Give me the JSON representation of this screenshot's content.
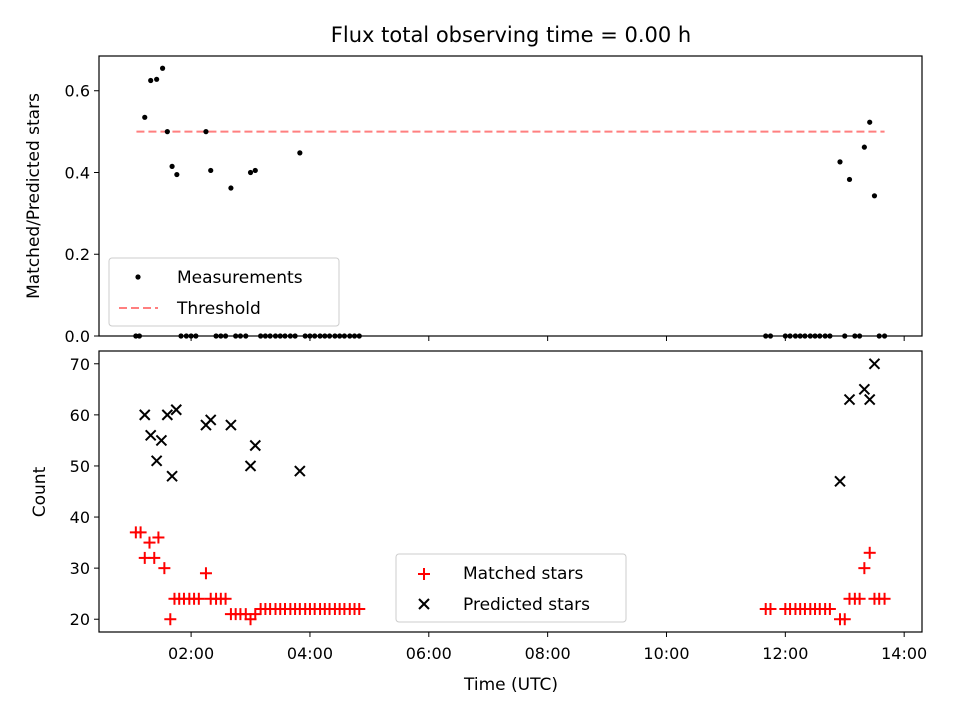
{
  "chart_data": [
    {
      "type": "scatter",
      "title": "Flux total observing time = 0.00 h",
      "xlabel": "",
      "ylabel": "Matched/Predicted stars",
      "x_unit": "hours UTC",
      "xlim": [
        0.45,
        14.3
      ],
      "ylim": [
        0.0,
        0.685
      ],
      "yticks": [
        "0.0",
        "0.2",
        "0.4",
        "0.6"
      ],
      "legend": "lower-left",
      "series": [
        {
          "name": "Measurements",
          "marker": "dot",
          "color": "#000000",
          "points": [
            [
              1.07,
              0.0
            ],
            [
              1.13,
              0.0
            ],
            [
              1.22,
              0.535
            ],
            [
              1.32,
              0.625
            ],
            [
              1.42,
              0.628
            ],
            [
              1.52,
              0.655
            ],
            [
              1.6,
              0.5
            ],
            [
              1.68,
              0.415
            ],
            [
              1.76,
              0.395
            ],
            [
              1.83,
              0.0
            ],
            [
              1.92,
              0.0
            ],
            [
              2.0,
              0.0
            ],
            [
              2.08,
              0.0
            ],
            [
              2.25,
              0.5
            ],
            [
              2.33,
              0.405
            ],
            [
              2.42,
              0.0
            ],
            [
              2.5,
              0.0
            ],
            [
              2.58,
              0.0
            ],
            [
              2.67,
              0.362
            ],
            [
              2.75,
              0.0
            ],
            [
              2.83,
              0.0
            ],
            [
              2.92,
              0.0
            ],
            [
              3.0,
              0.4
            ],
            [
              3.08,
              0.405
            ],
            [
              3.17,
              0.0
            ],
            [
              3.25,
              0.0
            ],
            [
              3.33,
              0.0
            ],
            [
              3.42,
              0.0
            ],
            [
              3.5,
              0.0
            ],
            [
              3.58,
              0.0
            ],
            [
              3.67,
              0.0
            ],
            [
              3.75,
              0.0
            ],
            [
              3.83,
              0.448
            ],
            [
              3.92,
              0.0
            ],
            [
              4.0,
              0.0
            ],
            [
              4.08,
              0.0
            ],
            [
              4.17,
              0.0
            ],
            [
              4.25,
              0.0
            ],
            [
              4.33,
              0.0
            ],
            [
              4.42,
              0.0
            ],
            [
              4.5,
              0.0
            ],
            [
              4.58,
              0.0
            ],
            [
              4.67,
              0.0
            ],
            [
              4.75,
              0.0
            ],
            [
              4.83,
              0.0
            ],
            [
              11.67,
              0.0
            ],
            [
              11.75,
              0.0
            ],
            [
              12.0,
              0.0
            ],
            [
              12.08,
              0.0
            ],
            [
              12.17,
              0.0
            ],
            [
              12.25,
              0.0
            ],
            [
              12.33,
              0.0
            ],
            [
              12.42,
              0.0
            ],
            [
              12.5,
              0.0
            ],
            [
              12.58,
              0.0
            ],
            [
              12.67,
              0.0
            ],
            [
              12.75,
              0.0
            ],
            [
              12.92,
              0.426
            ],
            [
              13.0,
              0.0
            ],
            [
              13.08,
              0.383
            ],
            [
              13.17,
              0.0
            ],
            [
              13.25,
              0.0
            ],
            [
              13.33,
              0.462
            ],
            [
              13.42,
              0.523
            ],
            [
              13.5,
              0.343
            ],
            [
              13.58,
              0.0
            ],
            [
              13.67,
              0.0
            ]
          ]
        },
        {
          "name": "Threshold",
          "style": "dashed-line",
          "color": "#ff7f7f",
          "x": [
            1.08,
            13.67
          ],
          "y": [
            0.5,
            0.5
          ]
        }
      ]
    },
    {
      "type": "scatter",
      "title": "",
      "xlabel": "Time (UTC)",
      "ylabel": "Count",
      "x_unit": "hours UTC",
      "xlim": [
        0.45,
        14.3
      ],
      "ylim": [
        17.5,
        72.5
      ],
      "xticks": [
        {
          "value": 2,
          "label": "02:00"
        },
        {
          "value": 4,
          "label": "04:00"
        },
        {
          "value": 6,
          "label": "06:00"
        },
        {
          "value": 8,
          "label": "08:00"
        },
        {
          "value": 10,
          "label": "10:00"
        },
        {
          "value": 12,
          "label": "12:00"
        },
        {
          "value": 14,
          "label": "14:00"
        }
      ],
      "yticks": [
        "20",
        "30",
        "40",
        "50",
        "60",
        "70"
      ],
      "legend": "lower-center",
      "series": [
        {
          "name": "Matched stars",
          "marker": "plus",
          "color": "#ff0000",
          "points": [
            [
              1.07,
              37
            ],
            [
              1.15,
              37
            ],
            [
              1.22,
              32
            ],
            [
              1.3,
              35
            ],
            [
              1.38,
              32
            ],
            [
              1.45,
              36
            ],
            [
              1.55,
              30
            ],
            [
              1.65,
              20
            ],
            [
              1.72,
              24
            ],
            [
              1.8,
              24
            ],
            [
              1.88,
              24
            ],
            [
              1.97,
              24
            ],
            [
              2.05,
              24
            ],
            [
              2.13,
              24
            ],
            [
              2.25,
              29
            ],
            [
              2.33,
              24
            ],
            [
              2.42,
              24
            ],
            [
              2.5,
              24
            ],
            [
              2.58,
              24
            ],
            [
              2.67,
              21
            ],
            [
              2.75,
              21
            ],
            [
              2.83,
              21
            ],
            [
              2.92,
              21
            ],
            [
              3.0,
              20
            ],
            [
              3.08,
              21
            ],
            [
              3.17,
              22
            ],
            [
              3.25,
              22
            ],
            [
              3.33,
              22
            ],
            [
              3.42,
              22
            ],
            [
              3.5,
              22
            ],
            [
              3.58,
              22
            ],
            [
              3.67,
              22
            ],
            [
              3.75,
              22
            ],
            [
              3.83,
              22
            ],
            [
              3.92,
              22
            ],
            [
              4.0,
              22
            ],
            [
              4.08,
              22
            ],
            [
              4.17,
              22
            ],
            [
              4.25,
              22
            ],
            [
              4.33,
              22
            ],
            [
              4.42,
              22
            ],
            [
              4.5,
              22
            ],
            [
              4.58,
              22
            ],
            [
              4.67,
              22
            ],
            [
              4.75,
              22
            ],
            [
              4.83,
              22
            ],
            [
              11.67,
              22
            ],
            [
              11.75,
              22
            ],
            [
              12.0,
              22
            ],
            [
              12.08,
              22
            ],
            [
              12.17,
              22
            ],
            [
              12.25,
              22
            ],
            [
              12.33,
              22
            ],
            [
              12.42,
              22
            ],
            [
              12.5,
              22
            ],
            [
              12.58,
              22
            ],
            [
              12.67,
              22
            ],
            [
              12.75,
              22
            ],
            [
              12.92,
              20
            ],
            [
              13.0,
              20
            ],
            [
              13.08,
              24
            ],
            [
              13.17,
              24
            ],
            [
              13.25,
              24
            ],
            [
              13.33,
              30
            ],
            [
              13.42,
              33
            ],
            [
              13.5,
              24
            ],
            [
              13.58,
              24
            ],
            [
              13.67,
              24
            ]
          ]
        },
        {
          "name": "Predicted stars",
          "marker": "x",
          "color": "#000000",
          "points": [
            [
              1.22,
              60
            ],
            [
              1.32,
              56
            ],
            [
              1.42,
              51
            ],
            [
              1.5,
              55
            ],
            [
              1.6,
              60
            ],
            [
              1.68,
              48
            ],
            [
              1.75,
              61
            ],
            [
              2.25,
              58
            ],
            [
              2.33,
              59
            ],
            [
              2.67,
              58
            ],
            [
              3.0,
              50
            ],
            [
              3.08,
              54
            ],
            [
              3.83,
              49
            ],
            [
              12.92,
              47
            ],
            [
              13.08,
              63
            ],
            [
              13.33,
              65
            ],
            [
              13.42,
              63
            ],
            [
              13.5,
              70
            ]
          ]
        }
      ]
    }
  ]
}
